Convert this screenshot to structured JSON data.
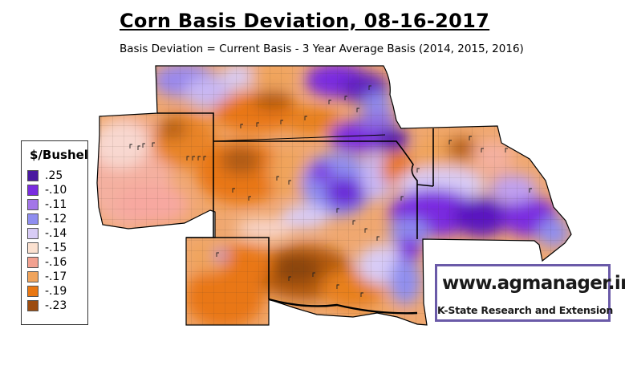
{
  "title": "Corn Basis Deviation, 08-16-2017",
  "subtitle": "Basis Deviation = Current Basis - 3 Year Average Basis (2014, 2015, 2016)",
  "legend": {
    "title": "$/Bushel",
    "items": [
      {
        "label": ".25",
        "color": "#4a1aa0"
      },
      {
        "label": "-.10",
        "color": "#7a2ce0"
      },
      {
        "label": "-.11",
        "color": "#a376e8"
      },
      {
        "label": "-.12",
        "color": "#8f8ef0"
      },
      {
        "label": "-.14",
        "color": "#d8ccf6"
      },
      {
        "label": "-.15",
        "color": "#fbe1d0"
      },
      {
        "label": "-.16",
        "color": "#f2a190"
      },
      {
        "label": "-.17",
        "color": "#f0a45c"
      },
      {
        "label": "-.19",
        "color": "#e97712"
      },
      {
        "label": "-.23",
        "color": "#9c4c10"
      }
    ]
  },
  "branding": {
    "url": "www.agmanager.info",
    "org": "K-State Research and Extension",
    "border_color": "#6a5aa8"
  }
}
